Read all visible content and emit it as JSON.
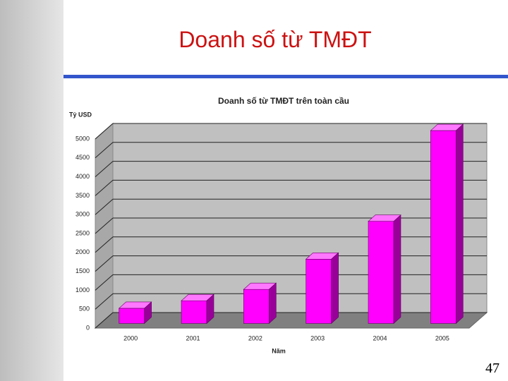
{
  "slide": {
    "title": "Doanh số từ TMĐT",
    "page_number": "47"
  },
  "chart_data": {
    "type": "bar3d",
    "title": "Doanh số từ TMĐT trên toàn cầu",
    "y_label": "Tỷ USD",
    "x_label": "Năm",
    "categories": [
      "2000",
      "2001",
      "2002",
      "2003",
      "2004",
      "2005"
    ],
    "values": [
      400,
      600,
      900,
      1700,
      2700,
      5100
    ],
    "color": "#ff00ff",
    "ylim": [
      0,
      5000
    ],
    "yticks": [
      0,
      500,
      1000,
      1500,
      2000,
      2500,
      3000,
      3500,
      4000,
      4500,
      5000
    ],
    "grid": true
  }
}
